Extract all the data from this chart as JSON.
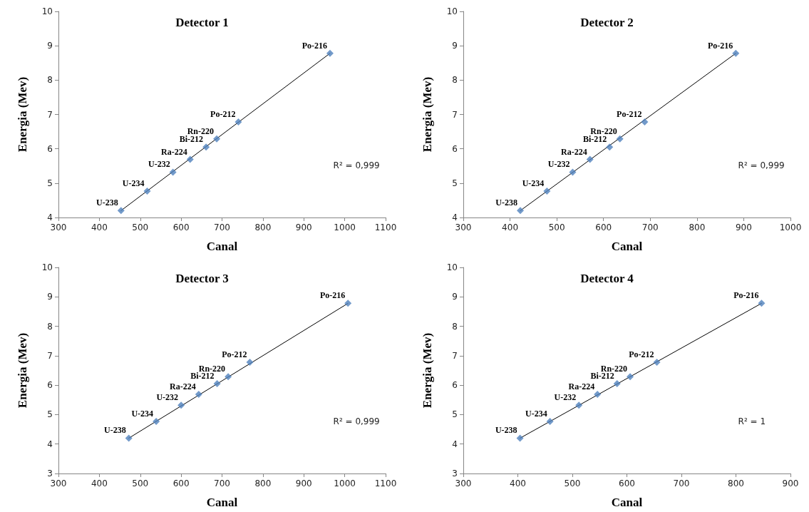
{
  "chart_data": [
    {
      "type": "scatter",
      "title": "Detector 1",
      "xlabel": "Canal",
      "ylabel": "Energia (Mev)",
      "xlim": [
        300,
        1100
      ],
      "xticks": [
        300,
        400,
        500,
        600,
        700,
        800,
        900,
        1000,
        1100
      ],
      "ylim": [
        4,
        10
      ],
      "yticks": [
        4,
        5,
        6,
        7,
        8,
        9,
        10
      ],
      "grid": false,
      "marker": "diamond",
      "series": [
        {
          "type": "scatter",
          "color": "#4f81bd",
          "x": [
            453,
            517,
            580,
            622,
            661,
            687,
            740,
            964
          ],
          "values": [
            4.2,
            4.77,
            5.32,
            5.69,
            6.05,
            6.29,
            6.78,
            8.78
          ]
        },
        {
          "type": "line",
          "color": "#000000",
          "line_style": "solid",
          "marker": "none",
          "x": [
            453,
            964
          ],
          "values": [
            4.2,
            8.78
          ]
        }
      ],
      "annotations": [
        {
          "text": "U-238",
          "x": 453,
          "y": 4.2
        },
        {
          "text": "U-234",
          "x": 517,
          "y": 4.77
        },
        {
          "text": "U-232",
          "x": 580,
          "y": 5.32
        },
        {
          "text": "Ra-224",
          "x": 622,
          "y": 5.69
        },
        {
          "text": "Bi-212",
          "x": 661,
          "y": 6.05
        },
        {
          "text": "Rn-220",
          "x": 687,
          "y": 6.29
        },
        {
          "text": "Po-212",
          "x": 740,
          "y": 6.78
        },
        {
          "text": "Po-216",
          "x": 964,
          "y": 8.78
        },
        "R² = 0,999"
      ]
    },
    {
      "type": "scatter",
      "title": "Detector 2",
      "xlabel": "Canal",
      "ylabel": "Energia (Mev)",
      "xlim": [
        300,
        1000
      ],
      "xticks": [
        300,
        400,
        500,
        600,
        700,
        800,
        900,
        1000
      ],
      "ylim": [
        4,
        10
      ],
      "yticks": [
        4,
        5,
        6,
        7,
        8,
        9,
        10
      ],
      "grid": false,
      "marker": "diamond",
      "series": [
        {
          "type": "scatter",
          "color": "#4f81bd",
          "x": [
            422,
            479,
            534,
            571,
            613,
            635,
            688,
            883
          ],
          "values": [
            4.2,
            4.77,
            5.32,
            5.69,
            6.05,
            6.29,
            6.78,
            8.78
          ]
        },
        {
          "type": "line",
          "color": "#000000",
          "line_style": "solid",
          "marker": "none",
          "x": [
            422,
            883
          ],
          "values": [
            4.2,
            8.78
          ]
        }
      ],
      "annotations": [
        {
          "text": "U-238",
          "x": 422,
          "y": 4.2
        },
        {
          "text": "U-234",
          "x": 479,
          "y": 4.77
        },
        {
          "text": "U-232",
          "x": 534,
          "y": 5.32
        },
        {
          "text": "Ra-224",
          "x": 571,
          "y": 5.69
        },
        {
          "text": "Bi-212",
          "x": 613,
          "y": 6.05
        },
        {
          "text": "Rn-220",
          "x": 635,
          "y": 6.29
        },
        {
          "text": "Po-212",
          "x": 688,
          "y": 6.78
        },
        {
          "text": "Po-216",
          "x": 883,
          "y": 8.78
        },
        "R² = 0,999"
      ]
    },
    {
      "type": "scatter",
      "title": "Detector 3",
      "xlabel": "Canal",
      "ylabel": "Energia (Mev)",
      "xlim": [
        300,
        1100
      ],
      "xticks": [
        300,
        400,
        500,
        600,
        700,
        800,
        900,
        1000,
        1100
      ],
      "ylim": [
        3,
        10
      ],
      "yticks": [
        3,
        4,
        5,
        6,
        7,
        8,
        9,
        10
      ],
      "grid": false,
      "marker": "diamond",
      "series": [
        {
          "type": "scatter",
          "color": "#4f81bd",
          "x": [
            472,
            539,
            600,
            643,
            688,
            715,
            768,
            1008
          ],
          "values": [
            4.2,
            4.77,
            5.32,
            5.69,
            6.05,
            6.29,
            6.78,
            8.78
          ]
        },
        {
          "type": "line",
          "color": "#000000",
          "line_style": "solid",
          "marker": "none",
          "x": [
            472,
            1008
          ],
          "values": [
            4.2,
            8.78
          ]
        }
      ],
      "annotations": [
        {
          "text": "U-238",
          "x": 472,
          "y": 4.2
        },
        {
          "text": "U-234",
          "x": 539,
          "y": 4.77
        },
        {
          "text": "U-232",
          "x": 600,
          "y": 5.32
        },
        {
          "text": "Ra-224",
          "x": 643,
          "y": 5.69
        },
        {
          "text": "Bi-212",
          "x": 688,
          "y": 6.05
        },
        {
          "text": "Rn-220",
          "x": 715,
          "y": 6.29
        },
        {
          "text": "Po-212",
          "x": 768,
          "y": 6.78
        },
        {
          "text": "Po-216",
          "x": 1008,
          "y": 8.78
        },
        "R² = 0,999"
      ]
    },
    {
      "type": "scatter",
      "title": "Detector 4",
      "xlabel": "Canal",
      "ylabel": "Energia (Mev)",
      "xlim": [
        300,
        900
      ],
      "xticks": [
        300,
        400,
        500,
        600,
        700,
        800,
        900
      ],
      "ylim": [
        3,
        10
      ],
      "yticks": [
        3,
        4,
        5,
        6,
        7,
        8,
        9,
        10
      ],
      "grid": false,
      "marker": "diamond",
      "series": [
        {
          "type": "scatter",
          "color": "#4f81bd",
          "x": [
            404,
            459,
            512,
            546,
            582,
            606,
            655,
            847
          ],
          "values": [
            4.2,
            4.77,
            5.32,
            5.69,
            6.05,
            6.29,
            6.78,
            8.78
          ]
        },
        {
          "type": "line",
          "color": "#000000",
          "line_style": "solid",
          "marker": "none",
          "x": [
            404,
            847
          ],
          "values": [
            4.2,
            8.78
          ]
        }
      ],
      "annotations": [
        {
          "text": "U-238",
          "x": 404,
          "y": 4.2
        },
        {
          "text": "U-234",
          "x": 459,
          "y": 4.77
        },
        {
          "text": "U-232",
          "x": 512,
          "y": 5.32
        },
        {
          "text": "Ra-224",
          "x": 546,
          "y": 5.69
        },
        {
          "text": "Bi-212",
          "x": 582,
          "y": 6.05
        },
        {
          "text": "Rn-220",
          "x": 606,
          "y": 6.29
        },
        {
          "text": "Po-212",
          "x": 655,
          "y": 6.78
        },
        {
          "text": "Po-216",
          "x": 847,
          "y": 8.78
        },
        "R² = 1"
      ]
    }
  ]
}
